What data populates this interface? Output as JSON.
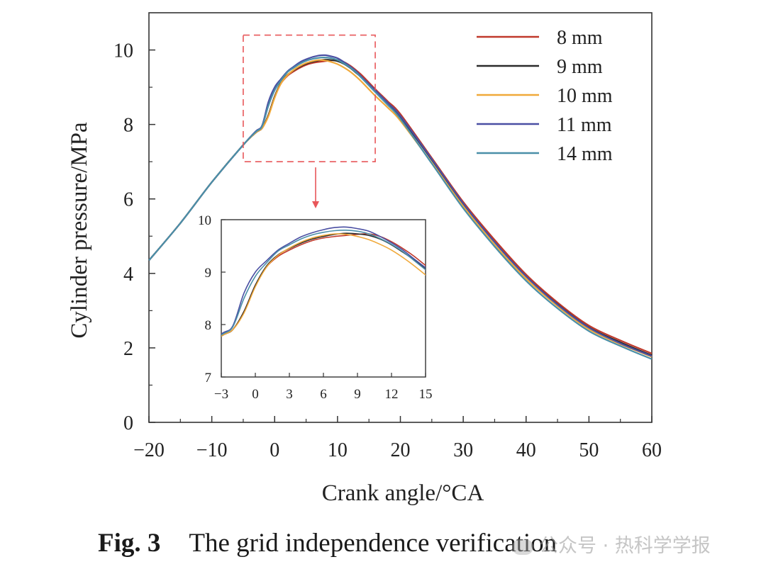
{
  "chart_data": {
    "type": "line",
    "title": "",
    "xlabel": "Crank angle/°CA",
    "ylabel": "Cylinder pressure/MPa",
    "xlim": [
      -20,
      60
    ],
    "ylim": [
      0,
      11
    ],
    "xticks": [
      -20,
      -10,
      0,
      10,
      20,
      30,
      40,
      50,
      60
    ],
    "xtick_labels": [
      "−20",
      "−10",
      "0",
      "10",
      "20",
      "30",
      "40",
      "50",
      "60"
    ],
    "yticks": [
      0,
      2,
      4,
      6,
      8,
      10
    ],
    "ytick_labels": [
      "0",
      "2",
      "4",
      "6",
      "8",
      "10"
    ],
    "grid": false,
    "legend_position": "top-right",
    "series": [
      {
        "name": "8 mm",
        "color": "#c0392b",
        "x": [
          -20,
          -15,
          -10,
          -5,
          -3,
          -2,
          -1,
          0,
          1,
          2,
          3,
          4,
          5,
          6,
          7,
          8,
          9,
          10,
          11,
          12,
          13,
          14,
          16,
          18,
          20,
          25,
          30,
          35,
          40,
          45,
          50,
          55,
          60
        ],
        "y": [
          4.35,
          5.35,
          6.45,
          7.45,
          7.78,
          7.9,
          8.25,
          8.75,
          9.1,
          9.3,
          9.42,
          9.52,
          9.6,
          9.65,
          9.68,
          9.7,
          9.72,
          9.73,
          9.68,
          9.58,
          9.45,
          9.3,
          8.95,
          8.62,
          8.28,
          7.1,
          5.92,
          4.9,
          3.97,
          3.22,
          2.6,
          2.2,
          1.85
        ]
      },
      {
        "name": "9 mm",
        "color": "#2b2b2b",
        "x": [
          -20,
          -15,
          -10,
          -5,
          -3,
          -2,
          -1,
          0,
          1,
          2,
          3,
          4,
          5,
          6,
          7,
          8,
          9,
          10,
          11,
          12,
          13,
          14,
          16,
          18,
          20,
          25,
          30,
          35,
          40,
          45,
          50,
          55,
          60
        ],
        "y": [
          4.35,
          5.35,
          6.45,
          7.45,
          7.78,
          7.9,
          8.25,
          8.75,
          9.12,
          9.33,
          9.45,
          9.55,
          9.63,
          9.68,
          9.72,
          9.74,
          9.73,
          9.7,
          9.63,
          9.52,
          9.38,
          9.23,
          8.88,
          8.55,
          8.2,
          7.05,
          5.87,
          4.84,
          3.92,
          3.17,
          2.55,
          2.15,
          1.8
        ]
      },
      {
        "name": "10 mm",
        "color": "#f0a93a",
        "x": [
          -20,
          -15,
          -10,
          -5,
          -3,
          -2,
          -1,
          0,
          1,
          2,
          3,
          4,
          5,
          6,
          7,
          8,
          9,
          10,
          11,
          12,
          13,
          14,
          16,
          18,
          20,
          25,
          30,
          35,
          40,
          45,
          50,
          55,
          60
        ],
        "y": [
          4.35,
          5.35,
          6.45,
          7.45,
          7.78,
          7.9,
          8.22,
          8.72,
          9.1,
          9.32,
          9.46,
          9.57,
          9.65,
          9.7,
          9.73,
          9.72,
          9.68,
          9.62,
          9.53,
          9.42,
          9.28,
          9.12,
          8.77,
          8.45,
          8.1,
          6.97,
          5.8,
          4.77,
          3.86,
          3.12,
          2.5,
          2.1,
          1.76
        ]
      },
      {
        "name": "11 mm",
        "color": "#4a4fa3",
        "x": [
          -20,
          -15,
          -10,
          -5,
          -3,
          -2,
          -1,
          0,
          1,
          2,
          3,
          4,
          5,
          6,
          7,
          8,
          9,
          10,
          11,
          12,
          13,
          14,
          16,
          18,
          20,
          25,
          30,
          35,
          40,
          45,
          50,
          55,
          60
        ],
        "y": [
          4.35,
          5.35,
          6.45,
          7.45,
          7.82,
          7.97,
          8.6,
          9.0,
          9.22,
          9.42,
          9.55,
          9.67,
          9.75,
          9.81,
          9.85,
          9.86,
          9.83,
          9.78,
          9.68,
          9.56,
          9.42,
          9.25,
          8.92,
          8.58,
          8.23,
          7.07,
          5.88,
          4.84,
          3.92,
          3.16,
          2.54,
          2.12,
          1.78
        ]
      },
      {
        "name": "14 mm",
        "color": "#4a8fa8",
        "x": [
          -20,
          -15,
          -10,
          -5,
          -3,
          -2,
          -1,
          0,
          1,
          2,
          3,
          4,
          5,
          6,
          7,
          8,
          9,
          10,
          11,
          12,
          13,
          14,
          16,
          18,
          20,
          25,
          30,
          35,
          40,
          45,
          50,
          55,
          60
        ],
        "y": [
          4.35,
          5.35,
          6.45,
          7.45,
          7.8,
          7.95,
          8.5,
          8.92,
          9.18,
          9.4,
          9.52,
          9.63,
          9.71,
          9.76,
          9.79,
          9.8,
          9.78,
          9.73,
          9.64,
          9.53,
          9.39,
          9.22,
          8.87,
          8.52,
          8.15,
          6.95,
          5.75,
          4.72,
          3.8,
          3.06,
          2.45,
          2.05,
          1.7
        ]
      }
    ],
    "zoom_box": {
      "xrange": [
        -5,
        16
      ],
      "yrange": [
        7.0,
        10.4
      ]
    },
    "inset": {
      "xlim": [
        -3,
        15
      ],
      "ylim": [
        7,
        10
      ],
      "xticks": [
        -3,
        0,
        3,
        6,
        9,
        12,
        15
      ],
      "xtick_labels": [
        "−3",
        "0",
        "3",
        "6",
        "9",
        "12",
        "15"
      ],
      "yticks": [
        7,
        8,
        9,
        10
      ],
      "ytick_labels": [
        "7",
        "8",
        "9",
        "10"
      ]
    }
  },
  "caption": {
    "fig_number": "Fig. 3",
    "text": "The grid independence verification"
  },
  "watermark": {
    "text": "公众号 · 热科学学报"
  }
}
